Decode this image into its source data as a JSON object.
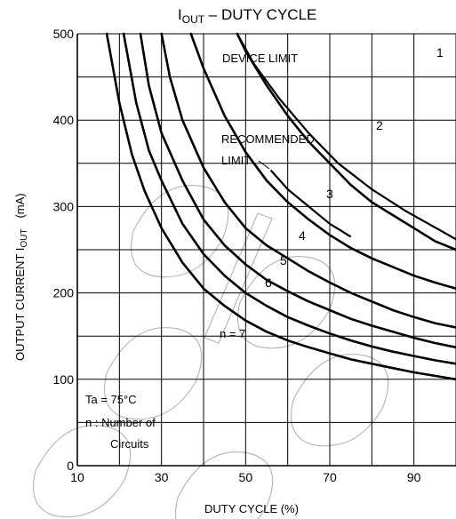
{
  "chart_data": {
    "type": "line",
    "title": "I OUT – DUTY CYCLE",
    "title_main": "I",
    "title_sub": "OUT",
    "title_rest": " – DUTY CYCLE",
    "xlabel": "DUTY CYCLE (%)",
    "ylabel_prefix": "OUTPUT CURRENT I",
    "ylabel_sub": "OUT",
    "ylabel_unit": "(mA)",
    "xlim": [
      10,
      100
    ],
    "ylim": [
      0,
      500
    ],
    "x_ticks": [
      10,
      30,
      50,
      70,
      90
    ],
    "x_tick_labels": [
      "10",
      "30",
      "50",
      "70",
      "90"
    ],
    "y_ticks": [
      0,
      100,
      200,
      300,
      400,
      500
    ],
    "y_tick_labels": [
      "0",
      "100",
      "200",
      "300",
      "400",
      "500"
    ],
    "grid": true,
    "line_color": "#000000",
    "series": [
      {
        "name": "1",
        "x": [
          100
        ],
        "y": [
          500
        ]
      },
      {
        "name": "2",
        "x": [
          48,
          50,
          55,
          60,
          65,
          70,
          75,
          80,
          85,
          90,
          95,
          100
        ],
        "y": [
          500,
          480,
          440,
          405,
          375,
          350,
          325,
          305,
          290,
          275,
          260,
          250
        ]
      },
      {
        "name": "3",
        "x": [
          37,
          40,
          45,
          50,
          55,
          60,
          65,
          70,
          75,
          80,
          85,
          90,
          95,
          100
        ],
        "y": [
          500,
          460,
          405,
          363,
          330,
          305,
          285,
          267,
          252,
          240,
          230,
          220,
          212,
          205
        ]
      },
      {
        "name": "4",
        "x": [
          30,
          32,
          35,
          40,
          45,
          50,
          55,
          60,
          65,
          70,
          75,
          80,
          85,
          90,
          95,
          100
        ],
        "y": [
          500,
          450,
          400,
          345,
          305,
          275,
          255,
          240,
          225,
          212,
          200,
          190,
          180,
          172,
          165,
          160
        ]
      },
      {
        "name": "5",
        "x": [
          25,
          27,
          30,
          35,
          40,
          45,
          50,
          55,
          60,
          65,
          70,
          75,
          80,
          85,
          90,
          95,
          100
        ],
        "y": [
          500,
          440,
          385,
          330,
          285,
          255,
          233,
          215,
          202,
          190,
          180,
          170,
          162,
          155,
          148,
          142,
          137
        ]
      },
      {
        "name": "6",
        "x": [
          21,
          24,
          27,
          30,
          35,
          40,
          45,
          50,
          55,
          60,
          65,
          70,
          75,
          80,
          85,
          90,
          95,
          100
        ],
        "y": [
          500,
          420,
          365,
          330,
          280,
          245,
          220,
          200,
          185,
          172,
          162,
          153,
          145,
          138,
          132,
          127,
          122,
          118
        ]
      },
      {
        "name": "n = 7",
        "x": [
          17,
          20,
          23,
          26,
          30,
          35,
          40,
          45,
          50,
          55,
          60,
          65,
          70,
          75,
          80,
          85,
          90,
          95,
          100
        ],
        "y": [
          500,
          420,
          360,
          318,
          275,
          235,
          205,
          185,
          168,
          155,
          145,
          137,
          130,
          123,
          118,
          113,
          108,
          104,
          100
        ]
      }
    ],
    "boundary_lines": [
      {
        "name": "DEVICE LIMIT",
        "x": [
          48,
          52,
          58,
          65,
          72,
          80,
          88,
          96,
          100
        ],
        "y": [
          500,
          465,
          425,
          385,
          350,
          320,
          295,
          273,
          262
        ]
      },
      {
        "name": "RECOMMENDED LIMIT",
        "x": [
          56,
          60,
          65,
          70,
          75
        ],
        "y": [
          342,
          320,
          300,
          280,
          265
        ]
      }
    ],
    "annotations": {
      "device_limit": "DEVICE LIMIT",
      "recommended_limit_1": "RECOMMENDED",
      "recommended_limit_2": "LIMIT",
      "condition_1": "Ta = 75°C",
      "condition_2": "n : Number of",
      "condition_3": "Circuits"
    },
    "watermark": "elenko"
  }
}
